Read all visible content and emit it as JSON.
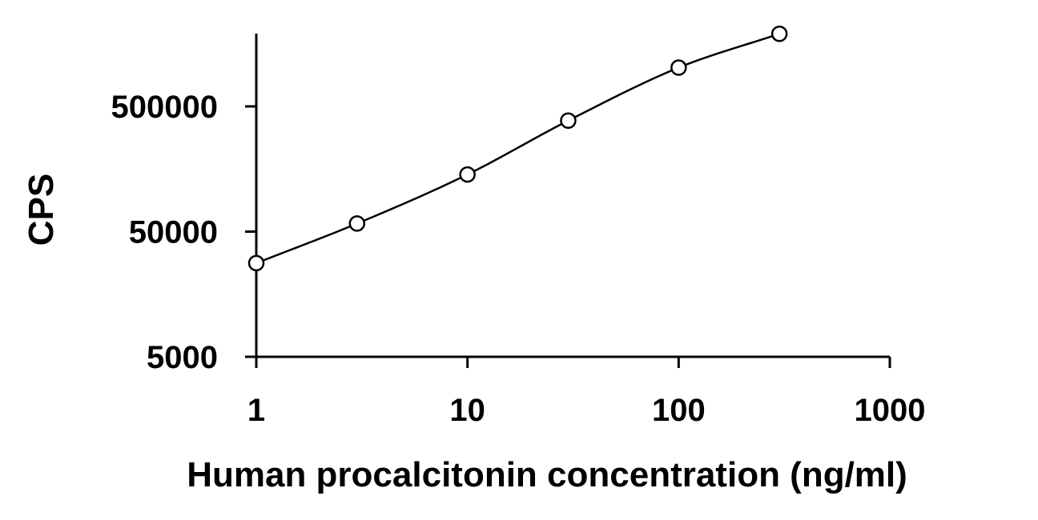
{
  "chart_data": {
    "type": "scatter",
    "xlabel": "Human procalcitonin concentration (ng/ml)",
    "ylabel": "CPS",
    "xscale": "log",
    "yscale": "log",
    "xlim": [
      1,
      1000
    ],
    "ylim": [
      5000,
      2000000
    ],
    "x_ticks": [
      1,
      10,
      100,
      1000
    ],
    "x_tick_labels": [
      "1",
      "10",
      "100",
      "1000"
    ],
    "y_ticks": [
      5000,
      50000,
      500000
    ],
    "y_tick_labels": [
      "5000",
      "50000",
      "500000"
    ],
    "grid": false,
    "legend": false,
    "marker": "open-circle",
    "series": [
      {
        "x": [
          1,
          3,
          10,
          30,
          100,
          300
        ],
        "y": [
          28000,
          58000,
          143000,
          385000,
          1020000,
          1900000
        ]
      }
    ],
    "line_color": "#000000"
  }
}
